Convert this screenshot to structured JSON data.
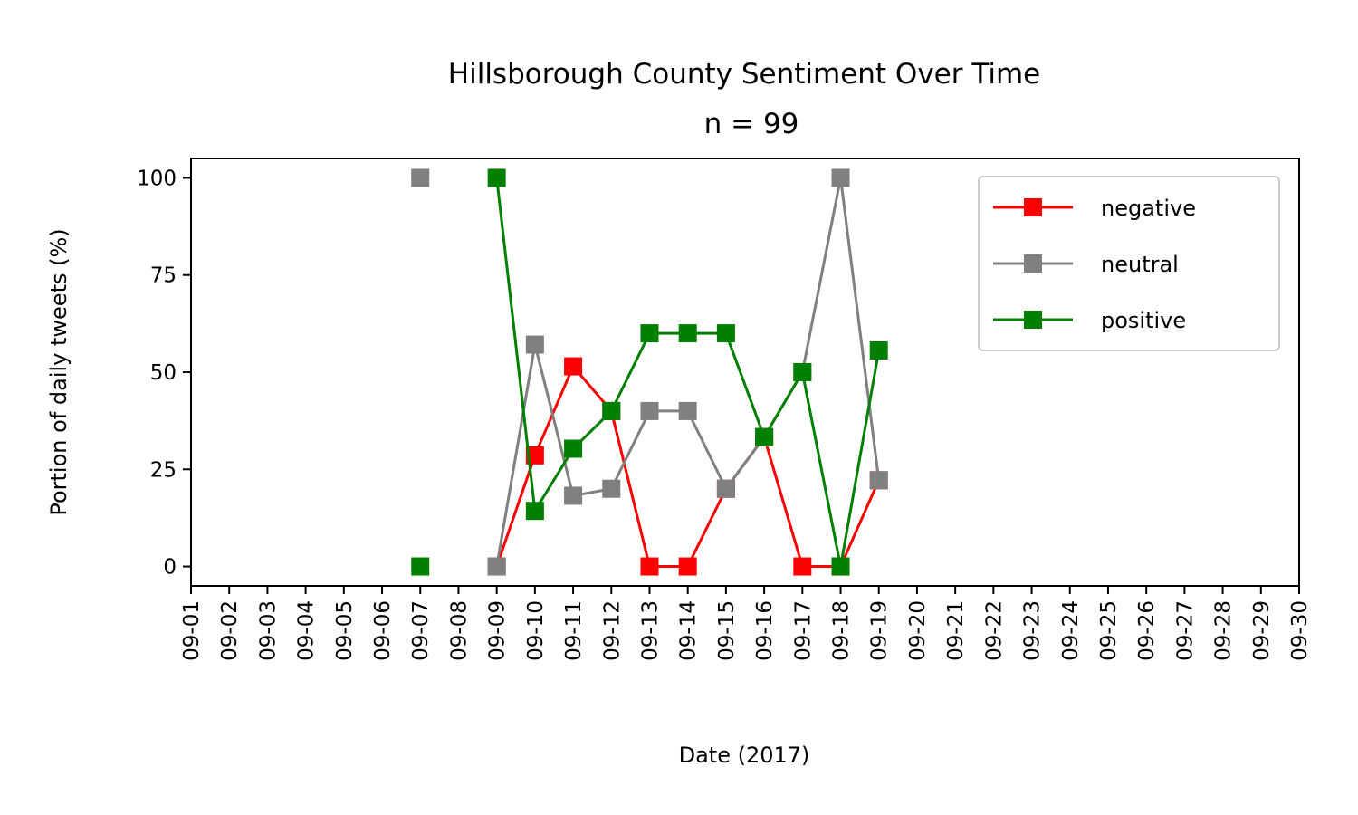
{
  "chart_data": {
    "type": "line",
    "title": "Hillsborough County Sentiment Over Time",
    "subtitle": "n = 99",
    "xlabel": "Date (2017)",
    "ylabel": "Portion of daily tweets (%)",
    "x_ticks": [
      "09-01",
      "09-02",
      "09-03",
      "09-04",
      "09-05",
      "09-06",
      "09-07",
      "09-08",
      "09-09",
      "09-10",
      "09-11",
      "09-12",
      "09-13",
      "09-14",
      "09-15",
      "09-16",
      "09-17",
      "09-18",
      "09-19",
      "09-20",
      "09-21",
      "09-22",
      "09-23",
      "09-24",
      "09-25",
      "09-26",
      "09-27",
      "09-28",
      "09-29",
      "09-30"
    ],
    "y_ticks": [
      0,
      25,
      50,
      75,
      100
    ],
    "ylim": [
      -5,
      105
    ],
    "grid": false,
    "legend_position": "top-right",
    "series": [
      {
        "name": "negative",
        "color": "#ff0000",
        "marker": "square",
        "points": [
          {
            "x": "09-09",
            "y": 0
          },
          {
            "x": "09-10",
            "y": 28.6
          },
          {
            "x": "09-11",
            "y": 51.5
          },
          {
            "x": "09-12",
            "y": 40
          },
          {
            "x": "09-13",
            "y": 0
          },
          {
            "x": "09-14",
            "y": 0
          },
          {
            "x": "09-15",
            "y": 20
          },
          {
            "x": "09-16",
            "y": 33.3
          },
          {
            "x": "09-17",
            "y": 0
          },
          {
            "x": "09-18",
            "y": 0
          },
          {
            "x": "09-19",
            "y": 22.2
          }
        ]
      },
      {
        "name": "neutral",
        "color": "#808080",
        "marker": "square",
        "points": [
          {
            "x": "09-07",
            "y": 100
          },
          {
            "x": "09-09",
            "y": 0
          },
          {
            "x": "09-10",
            "y": 57.1
          },
          {
            "x": "09-11",
            "y": 18.2
          },
          {
            "x": "09-12",
            "y": 20
          },
          {
            "x": "09-13",
            "y": 40
          },
          {
            "x": "09-14",
            "y": 40
          },
          {
            "x": "09-15",
            "y": 20
          },
          {
            "x": "09-16",
            "y": 33.3
          },
          {
            "x": "09-17",
            "y": 50
          },
          {
            "x": "09-18",
            "y": 100
          },
          {
            "x": "09-19",
            "y": 22.2
          }
        ]
      },
      {
        "name": "positive",
        "color": "#008000",
        "marker": "square",
        "points": [
          {
            "x": "09-07",
            "y": 0
          },
          {
            "x": "09-09",
            "y": 100
          },
          {
            "x": "09-10",
            "y": 14.3
          },
          {
            "x": "09-11",
            "y": 30.3
          },
          {
            "x": "09-12",
            "y": 40
          },
          {
            "x": "09-13",
            "y": 60
          },
          {
            "x": "09-14",
            "y": 60
          },
          {
            "x": "09-15",
            "y": 60
          },
          {
            "x": "09-16",
            "y": 33.3
          },
          {
            "x": "09-17",
            "y": 50
          },
          {
            "x": "09-18",
            "y": 0
          },
          {
            "x": "09-19",
            "y": 55.6
          }
        ]
      }
    ]
  }
}
